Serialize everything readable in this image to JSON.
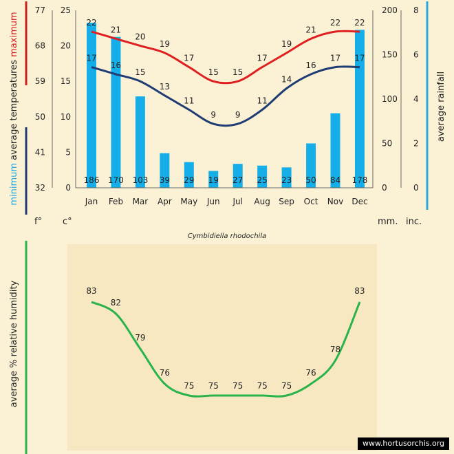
{
  "chart_data": [
    {
      "type": "bar+line",
      "species": "Cymbidiella rhodochila",
      "categories": [
        "Jan",
        "Feb",
        "Mar",
        "Apr",
        "May",
        "Jun",
        "Jul",
        "Aug",
        "Sep",
        "Oct",
        "Nov",
        "Dec"
      ],
      "rainfall_mm": [
        186,
        170,
        103,
        39,
        29,
        19,
        27,
        25,
        23,
        50,
        84,
        178
      ],
      "max_temp_c": [
        22,
        21,
        20,
        19,
        17,
        15,
        15,
        17,
        19,
        21,
        22,
        22
      ],
      "min_temp_c": [
        17,
        16,
        15,
        13,
        11,
        9,
        9,
        11,
        14,
        16,
        17,
        17
      ],
      "axes": {
        "fahrenheit_ticks": [
          "77",
          "68",
          "59",
          "50",
          "41",
          "32"
        ],
        "celsius_ticks": [
          "25",
          "20",
          "15",
          "10",
          "5",
          "0"
        ],
        "celsius_range": [
          0,
          25
        ],
        "rain_mm_ticks": [
          "200",
          "150",
          "100",
          "50",
          "0"
        ],
        "rain_mm_range": [
          0,
          200
        ],
        "rain_inch_ticks": [
          "8",
          "6",
          "4",
          "2",
          "0"
        ]
      },
      "left_title": {
        "minimum": "minimum",
        "average_temperatures": "average  temperatures",
        "maximum": "maximum"
      },
      "right_title": "average rainfall",
      "unit_labels": {
        "f": "f°",
        "c": "c°",
        "mm": "mm.",
        "inc": "inc."
      },
      "colors": {
        "bars": "#16aee8",
        "max_line": "#e02020",
        "min_line": "#1f3c73",
        "left_bar_max": "#d11f1f",
        "left_bar_min": "#1f3c73",
        "right_bar": "#29a8e0"
      }
    },
    {
      "type": "line",
      "categories": [
        "Jan",
        "Feb",
        "Mar",
        "Apr",
        "May",
        "Jun",
        "Jul",
        "Aug",
        "Sep",
        "Oct",
        "Nov",
        "Dec"
      ],
      "humidity_percent": [
        83,
        82,
        79,
        76,
        75,
        75,
        75,
        75,
        75,
        76,
        78,
        83
      ],
      "title": "average %  relative humidity",
      "colors": {
        "line": "#2ab34a",
        "left_bar": "#2ab34a"
      }
    }
  ],
  "watermark": "www.hortusorchis.org"
}
